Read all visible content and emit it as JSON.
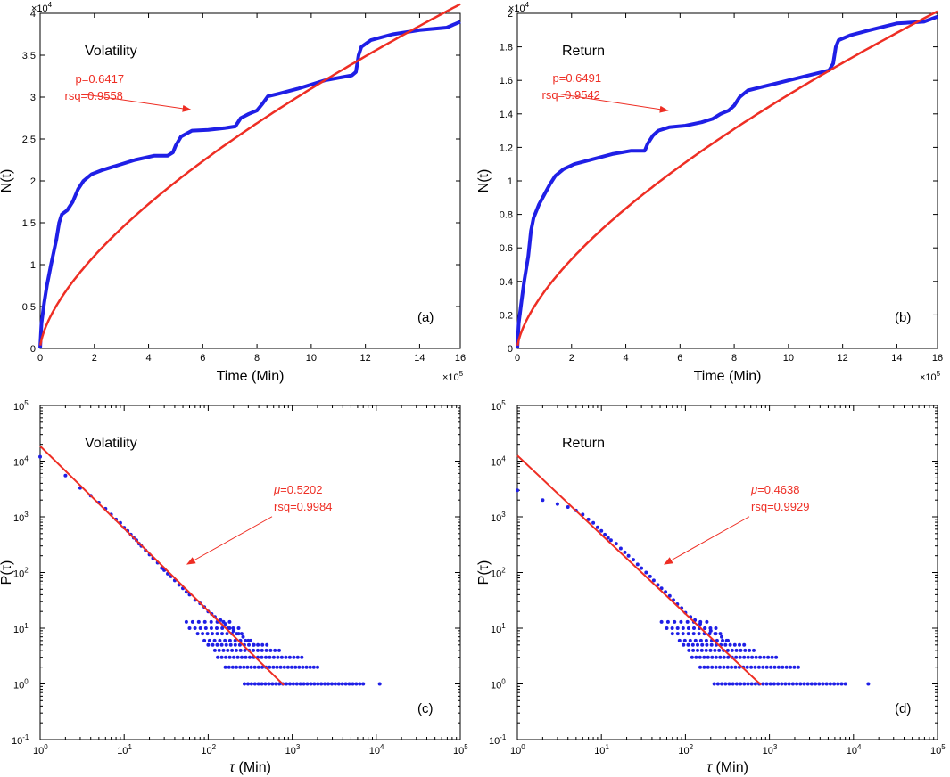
{
  "colors": {
    "data": "#1f1fe6",
    "fit": "#ee2e24",
    "annotation": "#ee2e24",
    "axis": "#000000"
  },
  "chart_data": [
    {
      "id": "a",
      "type": "line",
      "xscale": "linear",
      "yscale": "linear",
      "xlim": [
        0,
        1550000
      ],
      "ylim": [
        0,
        40000
      ],
      "xticks": [
        0,
        200000,
        400000,
        600000,
        800000,
        1000000,
        1200000,
        1400000,
        1600000
      ],
      "xtick_labels": [
        "0",
        "2",
        "4",
        "6",
        "8",
        "10",
        "12",
        "14",
        "16"
      ],
      "yticks": [
        0,
        5000,
        10000,
        15000,
        20000,
        25000,
        30000,
        35000,
        40000
      ],
      "ytick_labels": [
        "0",
        "0.5",
        "1",
        "1.5",
        "2",
        "2.5",
        "3",
        "3.5",
        "4"
      ],
      "x_multiplier": "×10",
      "x_multiplier_exp": "5",
      "y_multiplier": "×10",
      "y_multiplier_exp": "4",
      "xlabel": "Time (Min)",
      "ylabel": "N(t)",
      "title": "Volatility",
      "panel_label": "(a)",
      "annotation": {
        "line1": "p=0.6417",
        "line2": "rsq=0.9558",
        "p": 0.6417,
        "rsq": 0.9558,
        "text_at": [
          130000,
          31700
        ],
        "arrow_from": [
          160000,
          31200
        ],
        "arrow_to": [
          555000,
          28500
        ]
      },
      "fit": {
        "model": "power",
        "a": 4.38,
        "exponent": 0.6417,
        "x_start": 1000,
        "x_end": 1550000
      },
      "series": [
        {
          "name": "N(t)",
          "points": [
            [
              0,
              0
            ],
            [
              5000,
              3000
            ],
            [
              15000,
              5500
            ],
            [
              25000,
              7500
            ],
            [
              40000,
              10000
            ],
            [
              50000,
              11500
            ],
            [
              60000,
              13000
            ],
            [
              70000,
              15000
            ],
            [
              80000,
              16000
            ],
            [
              100000,
              16500
            ],
            [
              120000,
              17500
            ],
            [
              140000,
              19000
            ],
            [
              160000,
              20000
            ],
            [
              190000,
              20800
            ],
            [
              230000,
              21300
            ],
            [
              280000,
              21800
            ],
            [
              350000,
              22500
            ],
            [
              420000,
              23000
            ],
            [
              470000,
              23000
            ],
            [
              490000,
              23400
            ],
            [
              500000,
              24200
            ],
            [
              520000,
              25300
            ],
            [
              560000,
              26000
            ],
            [
              620000,
              26100
            ],
            [
              680000,
              26300
            ],
            [
              720000,
              26500
            ],
            [
              740000,
              27500
            ],
            [
              770000,
              28000
            ],
            [
              800000,
              28400
            ],
            [
              820000,
              29200
            ],
            [
              840000,
              30100
            ],
            [
              880000,
              30400
            ],
            [
              950000,
              31000
            ],
            [
              1050000,
              32000
            ],
            [
              1150000,
              32600
            ],
            [
              1165000,
              33000
            ],
            [
              1175000,
              35000
            ],
            [
              1185000,
              36000
            ],
            [
              1220000,
              36800
            ],
            [
              1300000,
              37500
            ],
            [
              1400000,
              38000
            ],
            [
              1500000,
              38300
            ],
            [
              1550000,
              39000
            ]
          ]
        }
      ]
    },
    {
      "id": "b",
      "type": "line",
      "xscale": "linear",
      "yscale": "linear",
      "xlim": [
        0,
        1550000
      ],
      "ylim": [
        0,
        20000
      ],
      "xticks": [
        0,
        200000,
        400000,
        600000,
        800000,
        1000000,
        1200000,
        1400000,
        1600000
      ],
      "xtick_labels": [
        "0",
        "2",
        "4",
        "6",
        "8",
        "10",
        "12",
        "14",
        "16"
      ],
      "yticks": [
        0,
        2000,
        4000,
        6000,
        8000,
        10000,
        12000,
        14000,
        16000,
        18000,
        20000
      ],
      "ytick_labels": [
        "0",
        "0.2",
        "0.4",
        "0.6",
        "0.8",
        "1",
        "1.2",
        "1.4",
        "1.6",
        "1.8",
        "2"
      ],
      "x_multiplier": "×10",
      "x_multiplier_exp": "5",
      "y_multiplier": "×10",
      "y_multiplier_exp": "4",
      "xlabel": "Time (Min)",
      "ylabel": "N(t)",
      "title": "Return",
      "panel_label": "(b)",
      "annotation": {
        "line1": "p=0.6491",
        "line2": "rsq=0.9542",
        "p": 0.6491,
        "rsq": 0.9542,
        "text_at": [
          130000,
          15900
        ],
        "arrow_from": [
          160000,
          15600
        ],
        "arrow_to": [
          555000,
          14200
        ]
      },
      "fit": {
        "model": "power",
        "a": 1.93,
        "exponent": 0.6491,
        "x_start": 1000,
        "x_end": 1550000
      },
      "series": [
        {
          "name": "N(t)",
          "points": [
            [
              0,
              0
            ],
            [
              5000,
              1500
            ],
            [
              15000,
              2800
            ],
            [
              25000,
              4000
            ],
            [
              40000,
              5500
            ],
            [
              50000,
              7000
            ],
            [
              60000,
              7800
            ],
            [
              70000,
              8200
            ],
            [
              80000,
              8600
            ],
            [
              100000,
              9200
            ],
            [
              120000,
              9800
            ],
            [
              140000,
              10300
            ],
            [
              170000,
              10700
            ],
            [
              210000,
              11000
            ],
            [
              280000,
              11300
            ],
            [
              350000,
              11600
            ],
            [
              420000,
              11800
            ],
            [
              470000,
              11800
            ],
            [
              480000,
              12200
            ],
            [
              500000,
              12700
            ],
            [
              520000,
              13000
            ],
            [
              560000,
              13200
            ],
            [
              620000,
              13300
            ],
            [
              680000,
              13500
            ],
            [
              720000,
              13700
            ],
            [
              750000,
              14000
            ],
            [
              780000,
              14200
            ],
            [
              800000,
              14500
            ],
            [
              820000,
              15000
            ],
            [
              850000,
              15400
            ],
            [
              900000,
              15600
            ],
            [
              950000,
              15800
            ],
            [
              1050000,
              16200
            ],
            [
              1150000,
              16600
            ],
            [
              1165000,
              17000
            ],
            [
              1175000,
              18000
            ],
            [
              1185000,
              18400
            ],
            [
              1230000,
              18700
            ],
            [
              1300000,
              19000
            ],
            [
              1400000,
              19400
            ],
            [
              1500000,
              19500
            ],
            [
              1550000,
              19800
            ]
          ]
        }
      ]
    },
    {
      "id": "c",
      "type": "scatter",
      "xscale": "log",
      "yscale": "log",
      "xlim_log10": [
        0,
        5
      ],
      "ylim_log10": [
        -1,
        5
      ],
      "xtick_exps": [
        "0",
        "1",
        "2",
        "3",
        "4",
        "5"
      ],
      "ytick_exps": [
        "-1",
        "0",
        "1",
        "2",
        "3",
        "4",
        "5"
      ],
      "tick_base": "10",
      "xlabel_symbol": "τ",
      "xlabel_rest": " (Min)",
      "ylabel": "P(τ)",
      "title": "Volatility",
      "panel_label": "(c)",
      "annotation": {
        "symbol": "μ",
        "value_text": "=0.5202",
        "line2": "rsq=0.9984",
        "mu": 0.5202,
        "rsq": 0.9984,
        "text_at_log": [
          3.1,
          3.42
        ],
        "arrow_from_log": [
          3.1,
          3.1
        ],
        "arrow_to_log": [
          1.75,
          2.15
        ]
      },
      "fit": {
        "slope": -1.48,
        "intercept_log10": 4.27,
        "x_end_log10": 2.9
      },
      "series": [
        {
          "name": "P(τ)",
          "points": [
            [
              1,
              12000
            ],
            [
              2,
              5500
            ],
            [
              3,
              3300
            ],
            [
              4,
              2400
            ],
            [
              5,
              1800
            ],
            [
              6,
              1400
            ],
            [
              7,
              1100
            ],
            [
              8,
              900
            ],
            [
              9,
              780
            ],
            [
              10,
              640
            ],
            [
              11,
              560
            ],
            [
              12,
              480
            ],
            [
              13,
              420
            ],
            [
              14,
              380
            ],
            [
              15,
              330
            ],
            [
              16,
              300
            ],
            [
              18,
              250
            ],
            [
              20,
              210
            ],
            [
              22,
              180
            ],
            [
              25,
              150
            ],
            [
              28,
              120
            ],
            [
              30,
              110
            ],
            [
              33,
              95
            ],
            [
              36,
              85
            ],
            [
              40,
              72
            ],
            [
              45,
              60
            ],
            [
              50,
              52
            ],
            [
              55,
              45
            ],
            [
              60,
              40
            ],
            [
              70,
              32
            ],
            [
              80,
              28
            ],
            [
              90,
              24
            ],
            [
              100,
              20
            ],
            [
              110,
              18
            ],
            [
              120,
              16
            ],
            [
              140,
              14
            ],
            [
              160,
              12
            ],
            [
              180,
              10
            ],
            [
              200,
              9
            ],
            [
              230,
              8
            ],
            [
              260,
              7
            ],
            [
              300,
              6
            ],
            [
              350,
              5
            ]
          ],
          "count_bands": [
            {
              "count": 1,
              "x_from": 270,
              "x_to": 7000,
              "n": 35,
              "extra_x": [
                11000
              ]
            },
            {
              "count": 2,
              "x_from": 160,
              "x_to": 2000,
              "n": 26
            },
            {
              "count": 3,
              "x_from": 130,
              "x_to": 1300,
              "n": 22
            },
            {
              "count": 4,
              "x_from": 120,
              "x_to": 700,
              "n": 16
            },
            {
              "count": 5,
              "x_from": 100,
              "x_to": 500,
              "n": 14
            },
            {
              "count": 6,
              "x_from": 90,
              "x_to": 320,
              "n": 10
            },
            {
              "count": 8,
              "x_from": 75,
              "x_to": 250,
              "n": 10
            },
            {
              "count": 10,
              "x_from": 60,
              "x_to": 230,
              "n": 10
            },
            {
              "count": 13,
              "x_from": 55,
              "x_to": 180,
              "n": 8
            }
          ]
        }
      ]
    },
    {
      "id": "d",
      "type": "scatter",
      "xscale": "log",
      "yscale": "log",
      "xlim_log10": [
        0,
        5
      ],
      "ylim_log10": [
        -1,
        5
      ],
      "xtick_exps": [
        "0",
        "1",
        "2",
        "3",
        "4",
        "5"
      ],
      "ytick_exps": [
        "-1",
        "0",
        "1",
        "2",
        "3",
        "4",
        "5"
      ],
      "tick_base": "10",
      "xlabel_symbol": "τ",
      "xlabel_rest": " (Min)",
      "ylabel": "P(τ)",
      "title": "Return",
      "panel_label": "(d)",
      "annotation": {
        "symbol": "μ",
        "value_text": "=0.4638",
        "line2": "rsq=0.9929",
        "mu": 0.4638,
        "rsq": 0.9929,
        "text_at_log": [
          3.1,
          3.42
        ],
        "arrow_from_log": [
          3.1,
          3.1
        ],
        "arrow_to_log": [
          1.75,
          2.15
        ]
      },
      "fit": {
        "slope": -1.42,
        "intercept_log10": 4.1,
        "x_end_log10": 2.9
      },
      "series": [
        {
          "name": "P(τ)",
          "points": [
            [
              1,
              3000
            ],
            [
              2,
              2000
            ],
            [
              3,
              1700
            ],
            [
              4,
              1500
            ],
            [
              5,
              1300
            ],
            [
              6,
              1100
            ],
            [
              7,
              900
            ],
            [
              8,
              780
            ],
            [
              9,
              650
            ],
            [
              10,
              560
            ],
            [
              11,
              480
            ],
            [
              12,
              420
            ],
            [
              13,
              380
            ],
            [
              15,
              330
            ],
            [
              17,
              270
            ],
            [
              19,
              230
            ],
            [
              21,
              200
            ],
            [
              24,
              170
            ],
            [
              27,
              140
            ],
            [
              30,
              120
            ],
            [
              34,
              100
            ],
            [
              38,
              85
            ],
            [
              42,
              72
            ],
            [
              47,
              60
            ],
            [
              52,
              52
            ],
            [
              58,
              45
            ],
            [
              65,
              38
            ],
            [
              72,
              32
            ],
            [
              80,
              27
            ],
            [
              90,
              23
            ],
            [
              100,
              19
            ],
            [
              115,
              16
            ],
            [
              130,
              14
            ],
            [
              150,
              12
            ],
            [
              170,
              10
            ],
            [
              200,
              9
            ],
            [
              230,
              8
            ],
            [
              270,
              7
            ],
            [
              310,
              6
            ]
          ],
          "count_bands": [
            {
              "count": 1,
              "x_from": 220,
              "x_to": 8000,
              "n": 36,
              "extra_x": [
                15000
              ]
            },
            {
              "count": 2,
              "x_from": 150,
              "x_to": 2200,
              "n": 26
            },
            {
              "count": 3,
              "x_from": 120,
              "x_to": 1200,
              "n": 22
            },
            {
              "count": 4,
              "x_from": 110,
              "x_to": 650,
              "n": 16
            },
            {
              "count": 5,
              "x_from": 95,
              "x_to": 500,
              "n": 14
            },
            {
              "count": 6,
              "x_from": 85,
              "x_to": 320,
              "n": 10
            },
            {
              "count": 8,
              "x_from": 70,
              "x_to": 260,
              "n": 10
            },
            {
              "count": 10,
              "x_from": 60,
              "x_to": 230,
              "n": 10
            },
            {
              "count": 13,
              "x_from": 52,
              "x_to": 180,
              "n": 8
            }
          ]
        }
      ]
    }
  ]
}
